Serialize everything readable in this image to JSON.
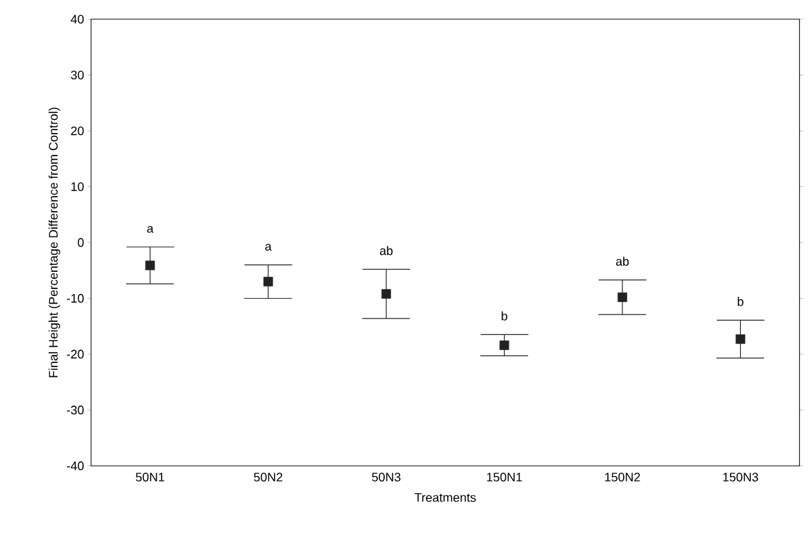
{
  "chart_data": {
    "type": "scatter",
    "xlabel": "Treatments",
    "ylabel": "Final Height (Percentage Difference from Control)",
    "categories": [
      "50N1",
      "50N2",
      "50N3",
      "150N1",
      "150N2",
      "150N3"
    ],
    "values": [
      -4.1,
      -7.0,
      -9.2,
      -18.4,
      -9.8,
      -17.3
    ],
    "errors": [
      3.3,
      3.0,
      4.4,
      1.9,
      3.1,
      3.4
    ],
    "color": "#222222",
    "marker": "square",
    "ylim": [
      -40,
      40
    ],
    "yticks": [
      -40,
      -30,
      -20,
      -10,
      0,
      10,
      20,
      30,
      40
    ],
    "annotations": [
      "a",
      "a",
      "ab",
      "b",
      "ab",
      "b"
    ]
  }
}
